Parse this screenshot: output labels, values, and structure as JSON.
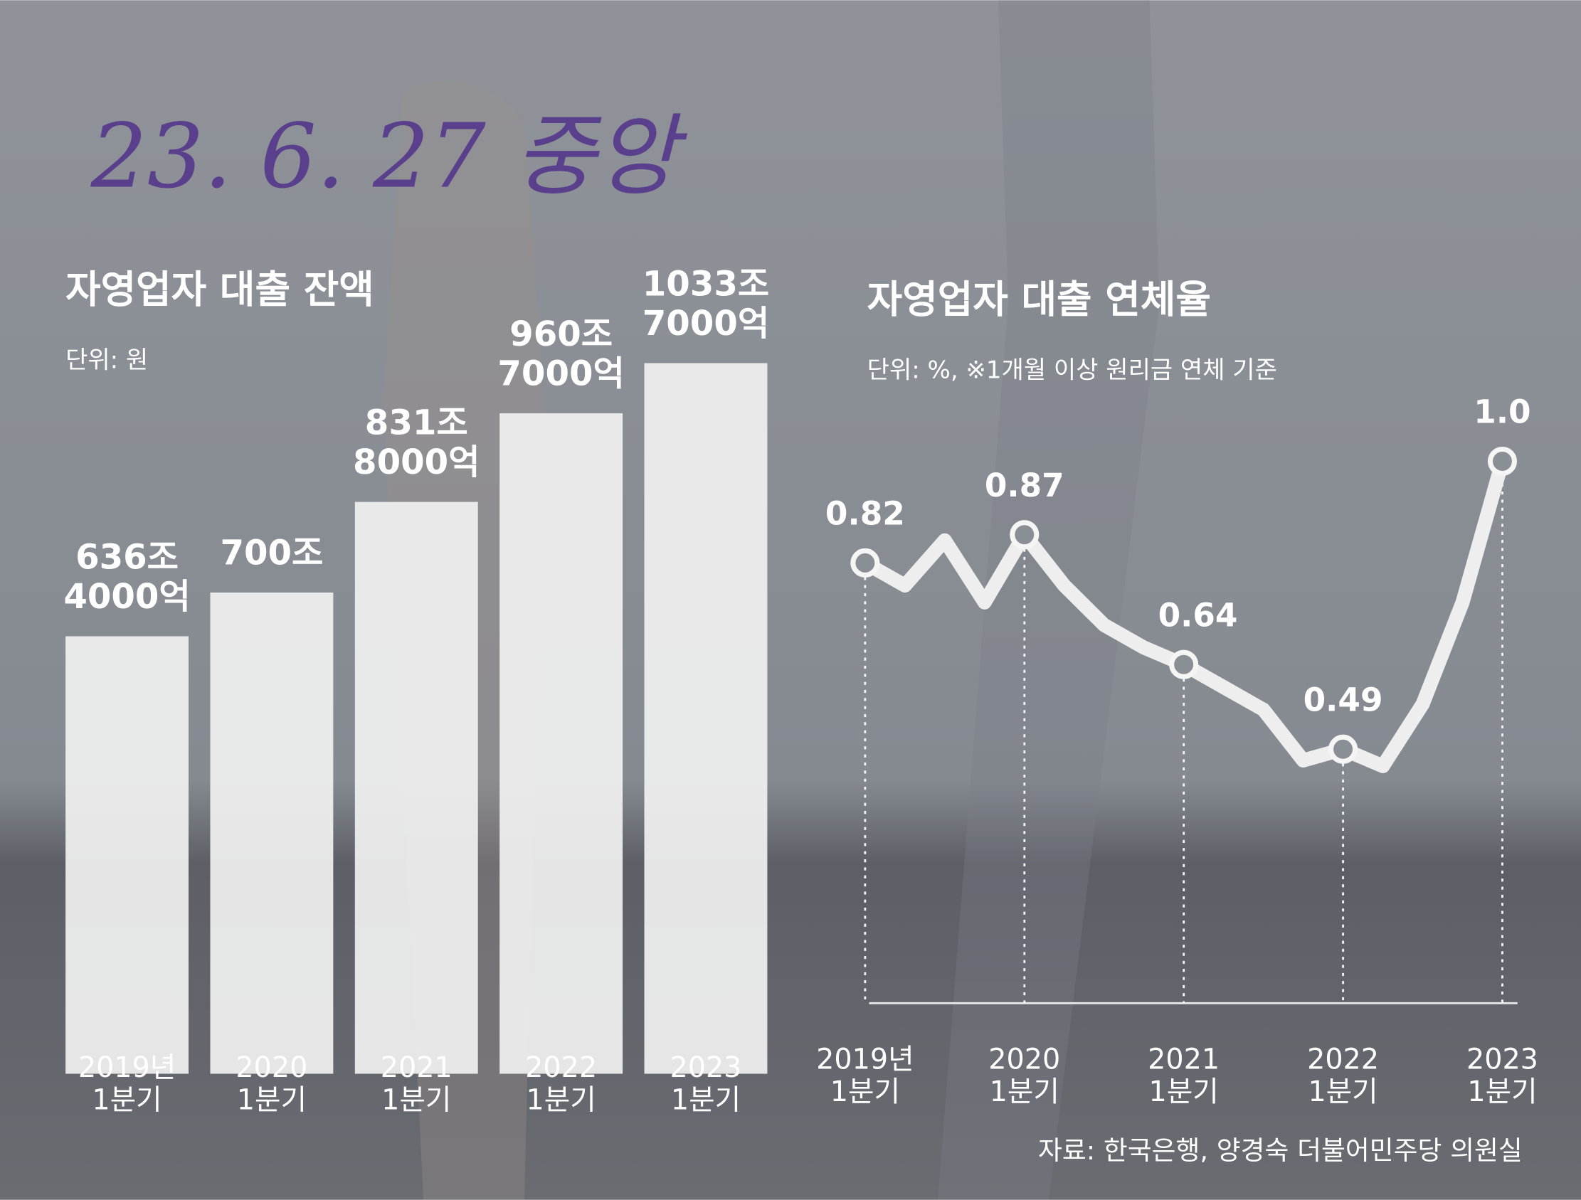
{
  "handwritten_note": "23. 6. 27 중앙",
  "chart_data": [
    {
      "type": "bar",
      "title": "자영업자 대출 잔액",
      "subtitle": "단위: 원",
      "categories": [
        "2019년\n1분기",
        "2020\n1분기",
        "2021\n1분기",
        "2022\n1분기",
        "2023\n1분기"
      ],
      "values": [
        636.4,
        700,
        831.8,
        960.7,
        1033.7
      ],
      "value_labels": [
        "636조\n4000억",
        "700조",
        "831조\n8000억",
        "960조\n7000억",
        "1033조\n7000억"
      ],
      "color": "#f1f1f1"
    },
    {
      "type": "line",
      "title": "자영업자 대출 연체율",
      "subtitle": "단위: %, ※1개월 이상 원리금 연체 기준",
      "categories": [
        "2019년\n1분기",
        null,
        null,
        null,
        "2020\n1분기",
        null,
        null,
        null,
        "2021\n1분기",
        null,
        null,
        null,
        "2022\n1분기",
        null,
        null,
        null,
        "2023\n1분기"
      ],
      "values": [
        0.82,
        0.78,
        0.86,
        0.75,
        0.87,
        0.78,
        0.71,
        0.67,
        0.64,
        0.6,
        0.56,
        0.47,
        0.49,
        0.46,
        0.57,
        0.75,
        1.0
      ],
      "value_labels": [
        "0.82",
        null,
        null,
        null,
        "0.87",
        null,
        null,
        null,
        "0.64",
        null,
        null,
        null,
        "0.49",
        null,
        null,
        null,
        "1.0"
      ],
      "color": "#eeeeee",
      "source": "자료: 한국은행, 양경숙 더불어민주당 의원실"
    }
  ]
}
